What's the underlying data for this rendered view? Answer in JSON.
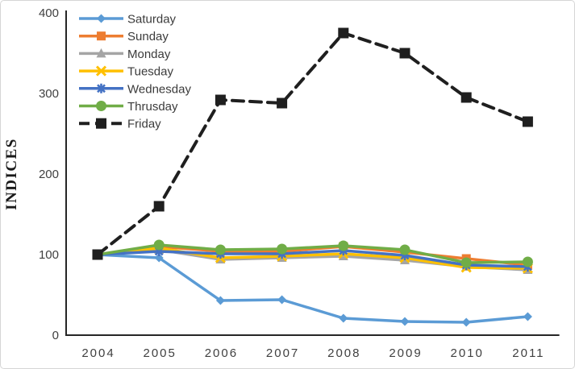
{
  "chart_data": {
    "type": "line",
    "title": "",
    "xlabel": "",
    "ylabel": "INDICES",
    "ylim": [
      0,
      400
    ],
    "y_ticks": [
      0,
      100,
      200,
      300,
      400
    ],
    "grid": false,
    "legend_position": "top-left-inside",
    "categories": [
      "2004",
      "2005",
      "2006",
      "2007",
      "2008",
      "2009",
      "2010",
      "2011"
    ],
    "series": [
      {
        "name": "Saturday",
        "color": "#5B9BD5",
        "marker": "diamond",
        "line": "solid",
        "values": [
          100,
          96,
          43,
          44,
          21,
          17,
          16,
          23
        ]
      },
      {
        "name": "Sunday",
        "color": "#ED7D31",
        "marker": "square",
        "line": "solid",
        "values": [
          100,
          110,
          104,
          104,
          110,
          103,
          95,
          87
        ]
      },
      {
        "name": "Monday",
        "color": "#A5A5A5",
        "marker": "triangle",
        "line": "solid",
        "values": [
          100,
          106,
          94,
          96,
          98,
          93,
          85,
          81
        ]
      },
      {
        "name": "Tuesday",
        "color": "#FFC000",
        "marker": "x",
        "line": "solid",
        "values": [
          100,
          108,
          96,
          98,
          101,
          96,
          84,
          83
        ]
      },
      {
        "name": "Wednesday",
        "color": "#4472C4",
        "marker": "asterisk",
        "line": "solid",
        "values": [
          100,
          104,
          101,
          101,
          105,
          99,
          87,
          85
        ]
      },
      {
        "name": "Thrusday",
        "color": "#70AD47",
        "marker": "circle",
        "line": "solid",
        "values": [
          100,
          112,
          106,
          107,
          111,
          106,
          90,
          91
        ]
      },
      {
        "name": "Friday",
        "color": "#1F1F1F",
        "marker": "big-square",
        "line": "dashed",
        "values": [
          100,
          160,
          292,
          288,
          375,
          350,
          295,
          265
        ]
      }
    ],
    "axis_color": "#262626",
    "tick_color": "#404040"
  }
}
